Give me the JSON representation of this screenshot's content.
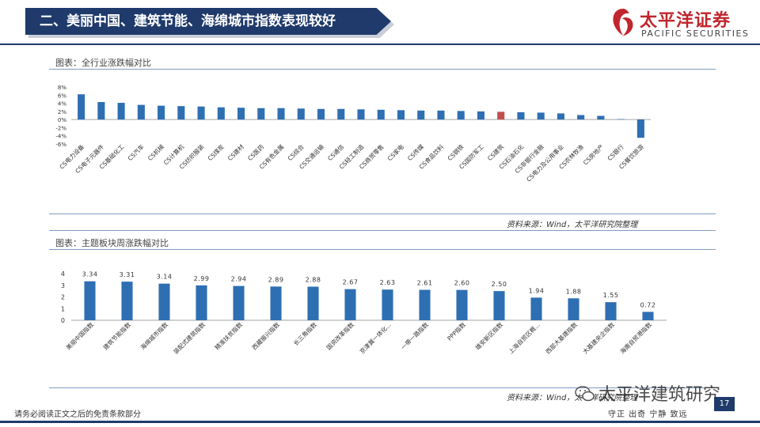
{
  "header": {
    "title": "二、美丽中国、建筑节能、海绵城市指数表现较好",
    "logo_cn": "太平洋证券",
    "logo_en": "PACIFIC SECURITIES",
    "brand_color": "#1f3a6b",
    "logo_color": "#c0262d"
  },
  "chart1": {
    "title": "图表：全行业涨跌幅对比",
    "source": "资料来源：Wind，太平洋研究院整理"
  },
  "chart2": {
    "title": "图表：主题板块周涨跌幅对比",
    "source": "资料来源：Wind，太平洋研究院整理"
  },
  "footer": {
    "disclaimer": "请务必阅读正文之后的免责条款部分",
    "motto": "守正 出奇 宁静 致远",
    "page": "17",
    "watermark": "太平洋建筑研究"
  },
  "chart_data": [
    {
      "type": "bar",
      "categories": [
        "CS电力设备",
        "CS电子元器件",
        "CS基础化工",
        "CS汽车",
        "CS机械",
        "CS计算机",
        "CS纺织服装",
        "CS煤炭",
        "CS建材",
        "CS医药",
        "CS有色金属",
        "CS综合",
        "CS交通运输",
        "CS通信",
        "CS轻工制造",
        "CS商贸零售",
        "CS家电",
        "CS传媒",
        "CS食品饮料",
        "CS钢铁",
        "CS国防军工",
        "CS建筑",
        "CS石油石化",
        "CS非银行金融",
        "CS电力及公用事业",
        "CS农林牧渔",
        "CS房地产",
        "CS银行",
        "CS餐饮旅游"
      ],
      "values": [
        6.2,
        4.3,
        4.1,
        3.6,
        3.4,
        3.3,
        3.2,
        3.0,
        2.9,
        2.8,
        2.8,
        2.7,
        2.6,
        2.6,
        2.5,
        2.4,
        2.3,
        2.2,
        2.2,
        2.1,
        2.0,
        1.9,
        1.8,
        1.7,
        1.5,
        1.1,
        0.9,
        0.1,
        -4.5
      ],
      "highlight_category": "CS建筑",
      "ylim": [
        -6,
        8
      ],
      "yticks": [
        "8%",
        "6%",
        "4%",
        "2%",
        "0%",
        "-2%",
        "-4%",
        "-6%"
      ],
      "bar_color": "#2e6fb3",
      "highlight_color": "#c0504d"
    },
    {
      "type": "bar",
      "categories": [
        "美丽中国指数",
        "建筑节能指数",
        "海绵城市指数",
        "装配式建筑指数",
        "精准扶贫指数",
        "西藏振兴指数",
        "长三角指数",
        "国资改革指数",
        "京津冀一体化...",
        "一带一路指数",
        "PPP指数",
        "雄安新区指数",
        "上海自贸区概...",
        "西部大基建指数",
        "大基建央企指数",
        "海南自贸港指数"
      ],
      "values": [
        3.34,
        3.31,
        3.14,
        2.99,
        2.94,
        2.89,
        2.88,
        2.67,
        2.63,
        2.61,
        2.6,
        2.5,
        1.94,
        1.88,
        1.55,
        0.72
      ],
      "value_labels": [
        "3.34",
        "3.31",
        "3.14",
        "2.99",
        "2.94",
        "2.89",
        "2.88",
        "2.67",
        "2.63",
        "2.61",
        "2.60",
        "2.50",
        "1.94",
        "1.88",
        "1.55",
        "0.72"
      ],
      "ylim": [
        0,
        4
      ],
      "yticks": [
        "4",
        "3",
        "2",
        "1",
        "0"
      ],
      "bar_color": "#2e6fb3"
    }
  ]
}
